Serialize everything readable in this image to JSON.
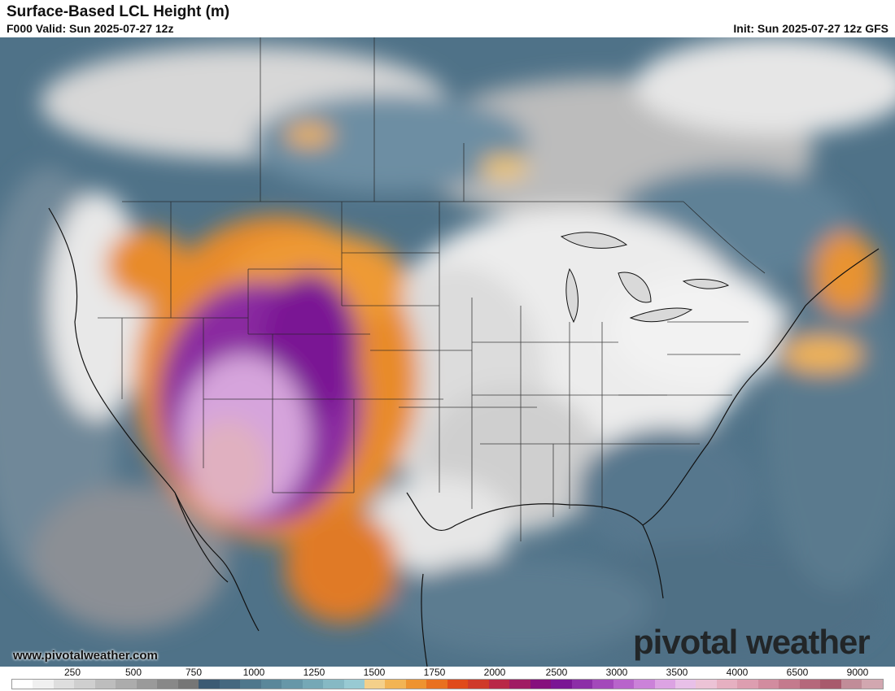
{
  "header": {
    "title": "Surface-Based LCL Height (m)",
    "valid": "F000 Valid: Sun 2025-07-27 12z",
    "init": "Init: Sun 2025-07-27 12z GFS"
  },
  "footer": {
    "site": "www.pivotalweather.com",
    "brand": "pivotal weather"
  },
  "colorbar": {
    "labels": [
      "250",
      "500",
      "750",
      "1000",
      "1250",
      "1500",
      "1750",
      "2000",
      "2500",
      "3000",
      "3500",
      "4000",
      "6500",
      "9000"
    ],
    "colors": [
      "#ffffff",
      "#f0f0f0",
      "#dedede",
      "#cfcfcf",
      "#bdbdbd",
      "#acacac",
      "#9a9a9a",
      "#888888",
      "#767676",
      "#3c5a73",
      "#45687f",
      "#4f778c",
      "#5a879a",
      "#6797a8",
      "#75a8b6",
      "#86b9c4",
      "#98cad3",
      "#f4d08a",
      "#f2b454",
      "#ee9330",
      "#e9701f",
      "#e04a1a",
      "#cf3a2a",
      "#b92847",
      "#a01c63",
      "#86107d",
      "#7a1694",
      "#8c2ea7",
      "#a348ba",
      "#b864cb",
      "#cb82d9",
      "#dca3e3",
      "#e8c0e8",
      "#ecc3d6",
      "#e6b0c1",
      "#dd9eb0",
      "#d28c9f",
      "#c47a8d",
      "#b5687b",
      "#a85a6c",
      "#c18c98",
      "#d2a7b0"
    ]
  }
}
